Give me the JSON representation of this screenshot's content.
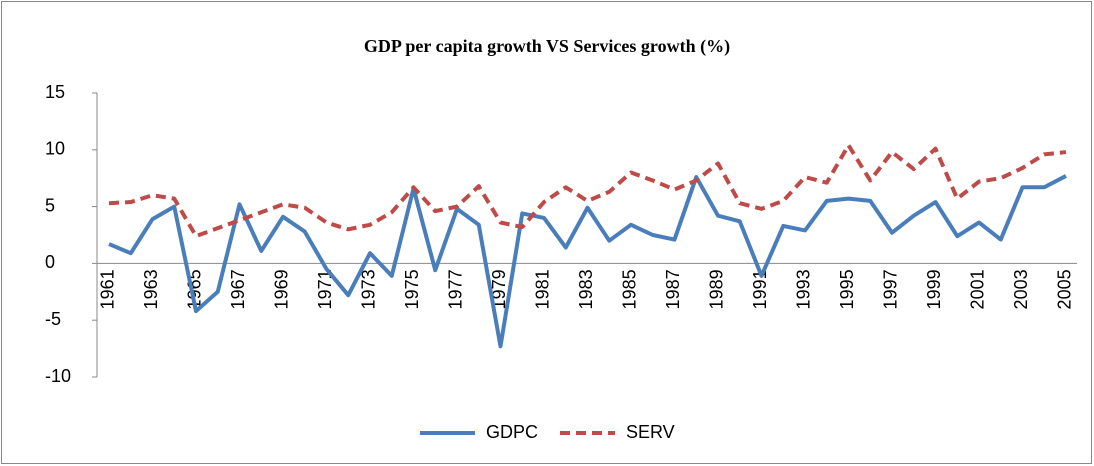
{
  "chart_data": {
    "type": "line",
    "title": "GDP per capita growth VS Services growth (%)",
    "categories": [
      "1961",
      null,
      "1963",
      null,
      "1965",
      null,
      "1967",
      null,
      "1969",
      null,
      "1971",
      null,
      "1973",
      null,
      "1975",
      null,
      "1977",
      null,
      "1979",
      null,
      "1981",
      null,
      "1983",
      null,
      "1985",
      null,
      "1987",
      null,
      "1989",
      null,
      "1991",
      null,
      "1993",
      null,
      "1995",
      null,
      "1997",
      null,
      "1999",
      null,
      "2001",
      null,
      "2003",
      null,
      "2005"
    ],
    "series": [
      {
        "name": "GDPC",
        "color": "#4a7ebb",
        "dash": false,
        "values": [
          1.7,
          0.9,
          3.9,
          5.0,
          -4.2,
          -2.5,
          5.2,
          1.1,
          4.1,
          2.8,
          -0.5,
          -2.8,
          0.9,
          -1.1,
          6.6,
          -0.6,
          4.8,
          3.4,
          -7.3,
          4.4,
          4.0,
          1.4,
          4.9,
          2.0,
          3.4,
          2.5,
          2.1,
          7.6,
          4.2,
          3.7,
          -1.1,
          3.3,
          2.9,
          5.5,
          5.7,
          5.5,
          2.7,
          4.2,
          5.4,
          2.4,
          3.6,
          2.1,
          6.7,
          6.7,
          7.7
        ]
      },
      {
        "name": "SERV",
        "color": "#be4b48",
        "dash": true,
        "values": [
          5.3,
          5.4,
          6.0,
          5.7,
          2.4,
          3.1,
          3.8,
          4.5,
          5.2,
          4.9,
          3.6,
          3.0,
          3.4,
          4.5,
          6.7,
          4.6,
          5.0,
          6.8,
          3.6,
          3.2,
          5.4,
          6.7,
          5.5,
          6.3,
          8.0,
          7.3,
          6.5,
          7.3,
          8.8,
          5.3,
          4.8,
          5.5,
          7.6,
          7.1,
          10.4,
          7.3,
          9.8,
          8.3,
          10.1,
          5.7,
          7.2,
          7.5,
          8.4,
          9.6,
          9.8
        ]
      }
    ],
    "ylim": [
      -10,
      15
    ],
    "yticks": [
      -10,
      -5,
      0,
      5,
      10,
      15
    ],
    "grid": false,
    "legend": "bottom"
  }
}
